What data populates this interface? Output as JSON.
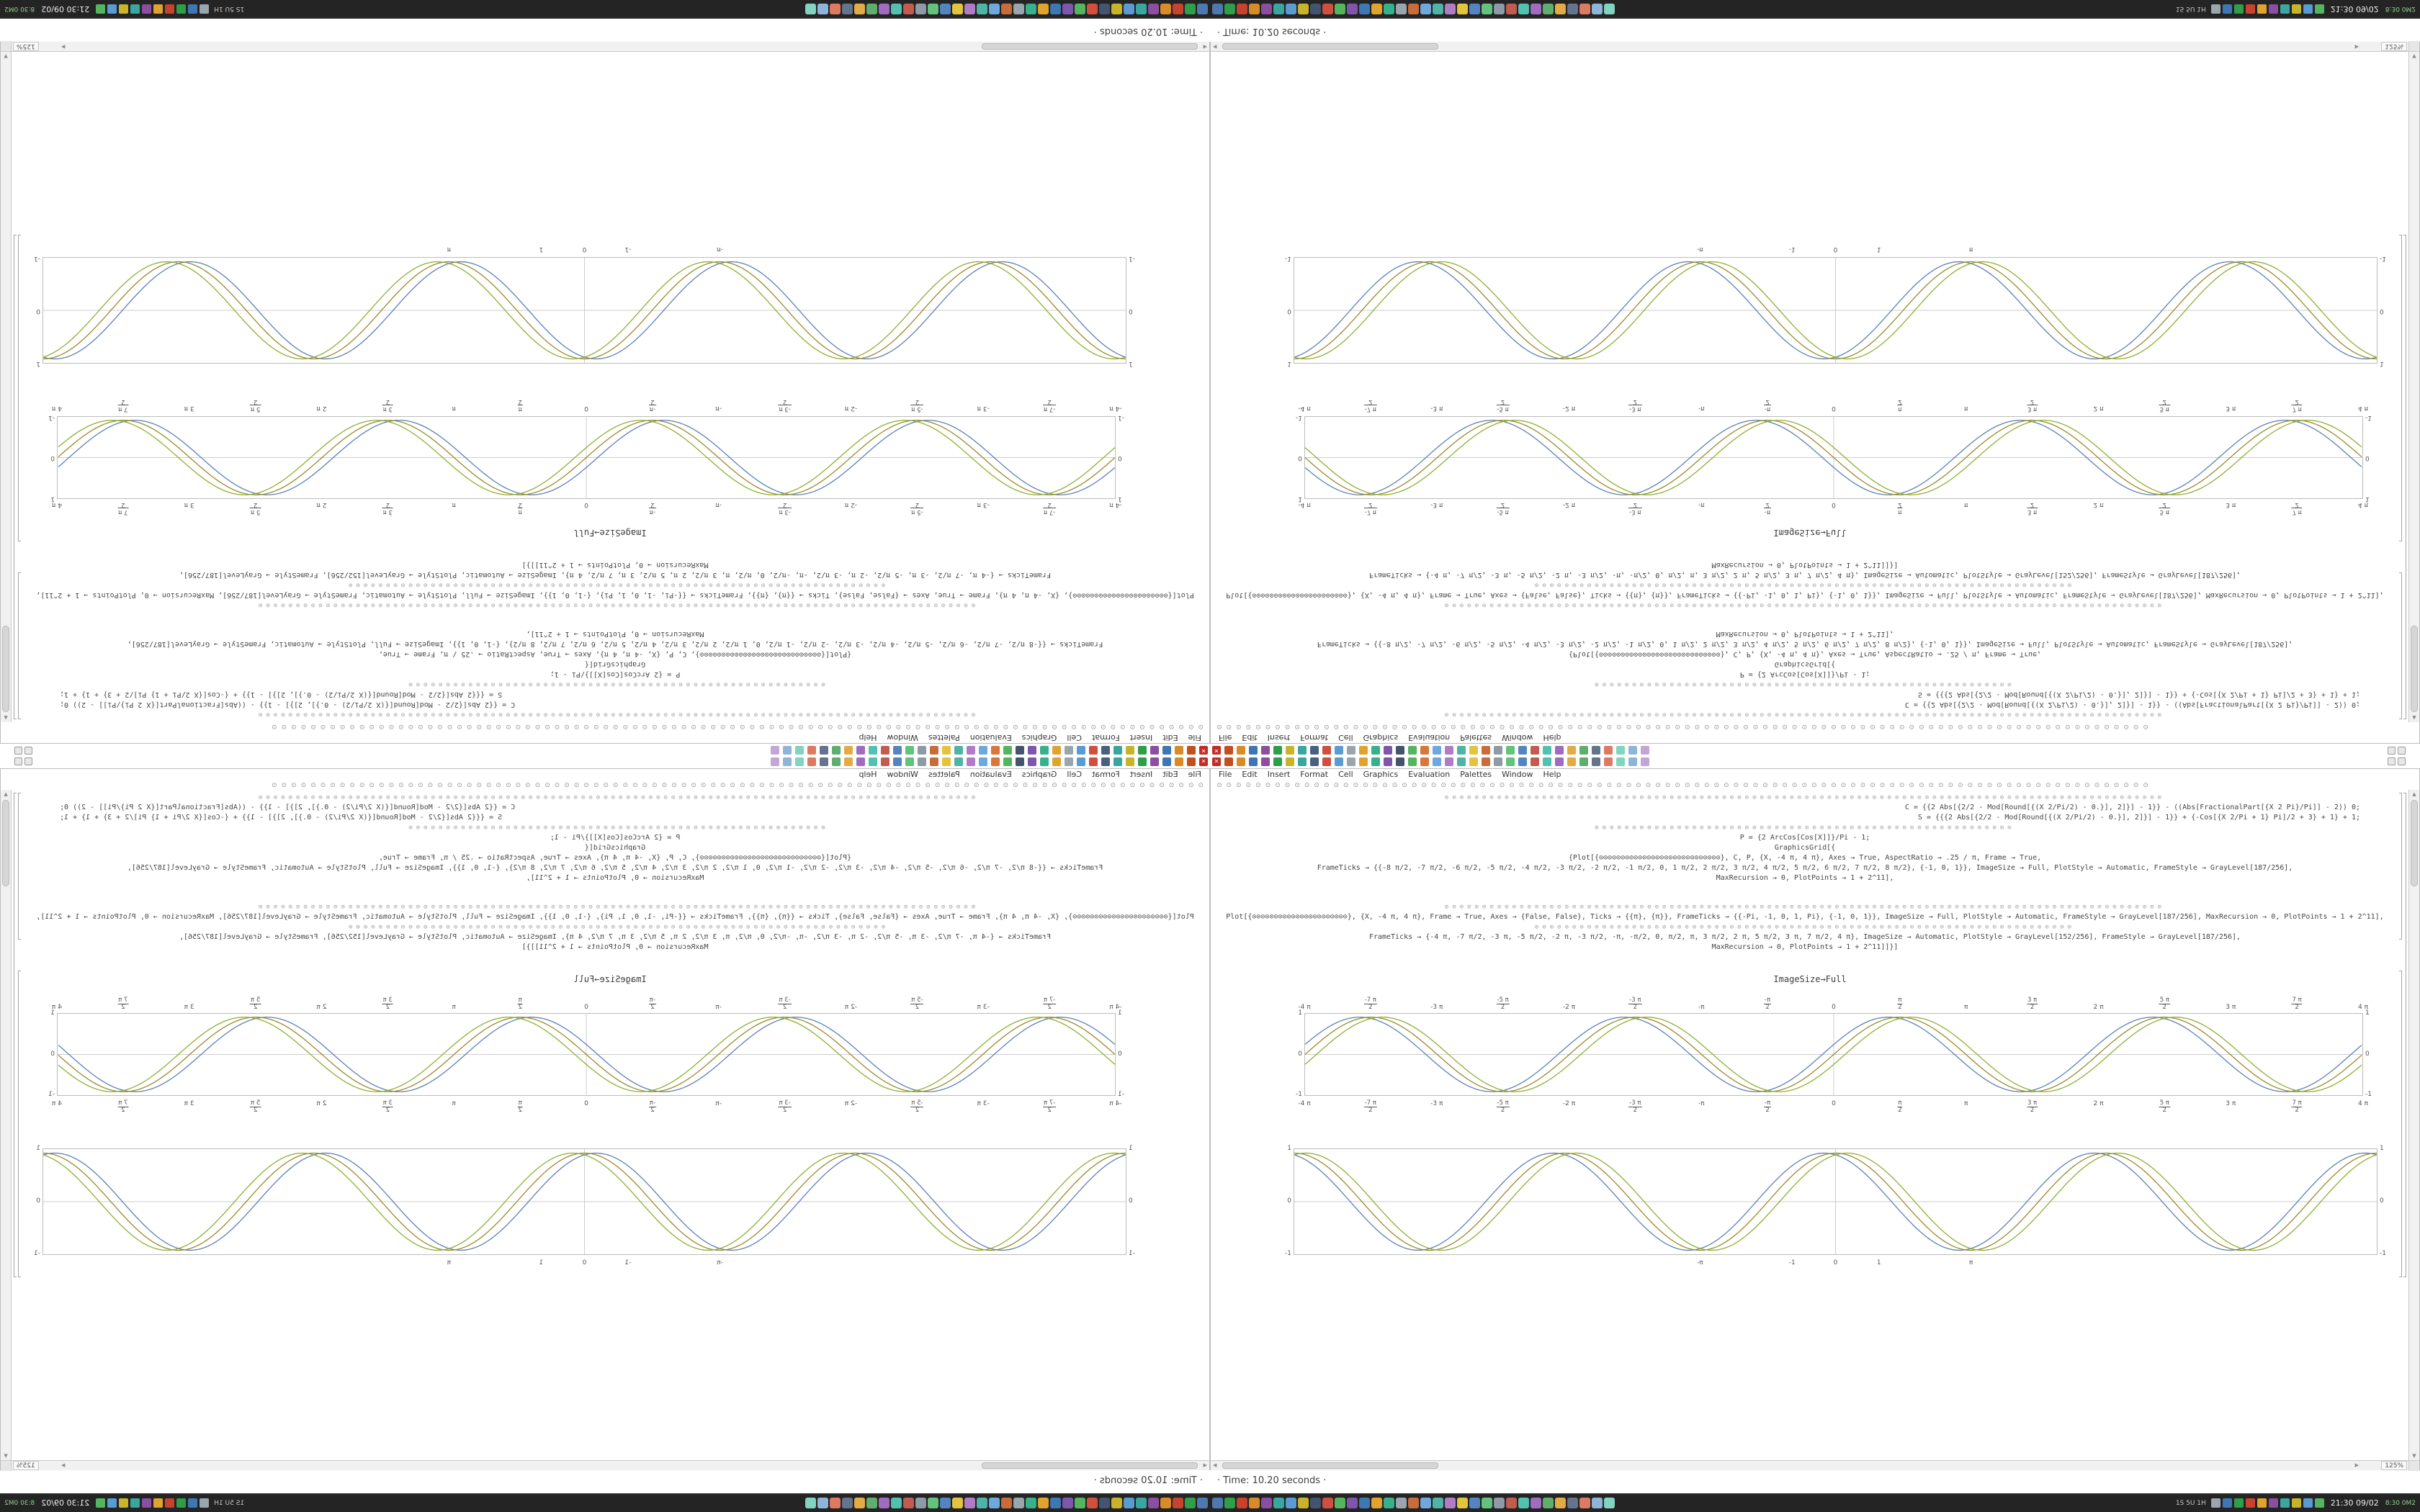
{
  "window": {
    "menu_items": [
      "File",
      "Edit",
      "Insert",
      "Format",
      "Cell",
      "Graphics",
      "Evaluation",
      "Palettes",
      "Window",
      "Help"
    ],
    "zoom": "125%"
  },
  "icons": {
    "scroll_up": "▲",
    "scroll_down": "▼",
    "scroll_left": "◀",
    "scroll_right": "▶"
  },
  "top_panel": {
    "icons": [
      {
        "c": "#bf2d24",
        "g": "✕"
      },
      {
        "c": "#c24f20"
      },
      {
        "c": "#d98b27"
      },
      {
        "c": "#3f76b4"
      },
      {
        "c": "#8c4ea0"
      },
      {
        "c": "#2e9e49"
      },
      {
        "c": "#c8b42a"
      },
      {
        "c": "#3aa6a0"
      },
      {
        "c": "#4a5f82"
      },
      {
        "c": "#d04f3e"
      },
      {
        "c": "#5a9bd4"
      },
      {
        "c": "#9aa5ad"
      },
      {
        "c": "#e0a32e"
      },
      {
        "c": "#37b08c"
      },
      {
        "c": "#7e57ad"
      },
      {
        "c": "#44546e"
      },
      {
        "c": "#55b45e"
      },
      {
        "c": "#d9763a"
      },
      {
        "c": "#6fa8dc"
      },
      {
        "c": "#b07cc6"
      },
      {
        "c": "#4fb3a5"
      },
      {
        "c": "#e3c43f"
      },
      {
        "c": "#c96c3c"
      },
      {
        "c": "#8e9aa6"
      },
      {
        "c": "#63c27b"
      },
      {
        "c": "#5585c0"
      },
      {
        "c": "#c25b50"
      },
      {
        "c": "#52c2b0"
      },
      {
        "c": "#a06cc0"
      },
      {
        "c": "#e2ab45"
      },
      {
        "c": "#5fae6e"
      },
      {
        "c": "#64748c"
      },
      {
        "c": "#df7a62"
      },
      {
        "c": "#81d4c0"
      },
      {
        "c": "#8fb4d9"
      },
      {
        "c": "#c4a6d6"
      }
    ]
  },
  "toolbar": {
    "glyph": "⊙",
    "count": 96
  },
  "notebook": {
    "caption": "ImageSize→Full",
    "code_lines": [
      {
        "t": "sym",
        "n": 96
      },
      {
        "t": "txt",
        "align": "right",
        "text": "C = {{2 Abs[{2/2 - Mod[Round[{(X 2/Pi/2) - 0.}], 2]}] - 1}} - ((Abs[FractionalPart[{X 2 Pi}/Pi]] - 2)) 0;"
      },
      {
        "t": "txt",
        "align": "right",
        "text": "S = {{{2 Abs[{2/2 - Mod[Round[{(X 2/Pi/2) - 0.}], 2]}] - 1}} + {-Cos[{X 2/Pi + 1} Pi]/2 + 3} + 1} + 1;"
      },
      {
        "t": "sym",
        "n": 56
      },
      {
        "t": "txt",
        "align": "center",
        "text": "P = {2 ArcCos[Cos[X]]}/Pi - 1;"
      },
      {
        "t": "txt",
        "align": "center",
        "text": "GraphicsGrid[{"
      },
      {
        "t": "txt",
        "align": "center",
        "text": "{Plot[{⊙⊙⊙⊙⊙⊙⊙⊙⊙⊙⊙⊙⊙⊙⊙⊙⊙⊙⊙⊙⊙⊙⊙⊙⊙⊙⊙⊙}, C, P, {X, -4 π, 4 π}, Axes → True, AspectRatio → .25 / π, Frame → True,"
      },
      {
        "t": "txt",
        "align": "center",
        "text": "FrameTicks → {{-8 π/2, -7 π/2, -6 π/2, -5 π/2, -4 π/2, -3 π/2, -2 π/2, -1 π/2, 0, 1 π/2, 2 π/2, 3 π/2, 4 π/2, 5 π/2, 6 π/2, 7 π/2, 8 π/2}, {-1, 0, 1}}, ImageSize → Full, PlotStyle → Automatic, FrameStyle → GrayLevel[187/256],"
      },
      {
        "t": "txt",
        "align": "center",
        "text": "MaxRecursion → 0, PlotPoints → 1 + 2^11],"
      },
      {
        "t": "gap"
      },
      {
        "t": "sym",
        "n": 96
      },
      {
        "t": "txt",
        "align": "center",
        "text": "Plot[{⊙⊙⊙⊙⊙⊙⊙⊙⊙⊙⊙⊙⊙⊙⊙⊙⊙⊙⊙⊙⊙⊙}, {X, -4 π, 4 π}, Frame → True, Axes → {False, False}, Ticks → {{π}, {π}}, FrameTicks → {{-Pi, -1, 0, 1, Pi}, {-1, 0, 1}}, ImageSize → Full, PlotStyle → Automatic, FrameStyle → GrayLevel[187/256], MaxRecursion → 0, PlotPoints → 1 + 2^11],"
      },
      {
        "t": "sym",
        "n": 72
      },
      {
        "t": "txt",
        "align": "center",
        "text": "FrameTicks → {-4 π, -7 π/2, -3 π, -5 π/2, -2 π, -3 π/2, -π, -π/2, 0, π/2, π, 3 π/2, 2 π, 5 π/2, 3 π, 7 π/2, 4 π}, ImageSize → Automatic, PlotStyle → GrayLevel[152/256], FrameStyle → GrayLevel[187/256],"
      },
      {
        "t": "txt",
        "align": "center",
        "text": "MaxRecursion → 0, PlotPoints → 1 + 2^11]]}]"
      }
    ]
  },
  "chart_data": {
    "plots": [
      {
        "type": "line",
        "title": "",
        "xlabel": "",
        "ylabel": "",
        "xmin": -12.566,
        "xmax": 12.566,
        "ylim": [
          -1,
          1
        ],
        "grid": false,
        "series": [
          {
            "name": "wave-blue",
            "fn": "sin",
            "phase": 0.27,
            "amp": 0.95,
            "color": "#5e81b5"
          },
          {
            "name": "wave-olive",
            "fn": "sin",
            "phase": 0.0,
            "amp": 0.95,
            "color": "#9a8a2d"
          },
          {
            "name": "wave-green",
            "fn": "sin",
            "phase": -0.27,
            "amp": 0.95,
            "color": "#8fb032"
          }
        ],
        "ticks_top": "same",
        "ticks_bottom": [
          {
            "p": 0,
            "w": "-4 π"
          },
          {
            "p": 6.25,
            "n": "-7 π",
            "d": "2"
          },
          {
            "p": 12.5,
            "w": "-3 π"
          },
          {
            "p": 18.75,
            "n": "-5 π",
            "d": "2"
          },
          {
            "p": 25,
            "w": "-2 π"
          },
          {
            "p": 31.25,
            "n": "-3 π",
            "d": "2"
          },
          {
            "p": 37.5,
            "w": "-π"
          },
          {
            "p": 43.75,
            "n": "-π",
            "d": "2"
          },
          {
            "p": 50,
            "w": "0"
          },
          {
            "p": 56.25,
            "n": "π",
            "d": "2"
          },
          {
            "p": 62.5,
            "w": "π"
          },
          {
            "p": 68.75,
            "n": "3 π",
            "d": "2"
          },
          {
            "p": 75,
            "w": "2 π"
          },
          {
            "p": 81.25,
            "n": "5 π",
            "d": "2"
          },
          {
            "p": 87.5,
            "w": "3 π"
          },
          {
            "p": 93.75,
            "n": "7 π",
            "d": "2"
          },
          {
            "p": 100,
            "w": "4 π"
          }
        ],
        "yticks": [
          "1",
          "0",
          "-1"
        ]
      },
      {
        "type": "line",
        "title": "",
        "xlabel": "",
        "ylabel": "",
        "xmin": -12.566,
        "xmax": 12.566,
        "ylim": [
          -1,
          1
        ],
        "grid": false,
        "series": [
          {
            "name": "wave-blue",
            "fn": "cos",
            "phase": 0.27,
            "amp": 0.95,
            "color": "#5e81b5"
          },
          {
            "name": "wave-olive",
            "fn": "cos",
            "phase": 0.0,
            "amp": 0.95,
            "color": "#9a8a2d"
          },
          {
            "name": "wave-green",
            "fn": "cos",
            "phase": -0.27,
            "amp": 0.95,
            "color": "#8fb032"
          }
        ],
        "ticks_bottom": [
          {
            "p": 37.5,
            "w": "-π"
          },
          {
            "p": 46,
            "w": "-1"
          },
          {
            "p": 50,
            "w": "0"
          },
          {
            "p": 54,
            "w": "1"
          },
          {
            "p": 62.5,
            "w": "π"
          }
        ],
        "yticks": [
          "1",
          "0",
          "-1"
        ]
      }
    ]
  },
  "status": {
    "text": "· Time: 10.20 seconds ·"
  },
  "taskbar": {
    "app_icons": [
      "#4d79b0",
      "#2e9e49",
      "#c8432e",
      "#d98b27",
      "#8c4ea0",
      "#3aa6a0",
      "#5a9bd4",
      "#c8b42a",
      "#44546e",
      "#d04f3e",
      "#55b45e",
      "#7e57ad",
      "#3f76b4",
      "#e0a32e",
      "#37b08c",
      "#9aa5ad",
      "#c96c3c",
      "#6fa8dc",
      "#4fb3a5",
      "#b07cc6",
      "#e3c43f",
      "#5585c0",
      "#63c27b",
      "#8e9aa6",
      "#c25b50",
      "#52c2b0",
      "#a06cc0",
      "#5fae6e",
      "#e2ab45",
      "#64748c",
      "#df7a62",
      "#8fb4d9",
      "#81d4c0"
    ],
    "tray_icons": [
      "#9aa5ad",
      "#3f76b4",
      "#2e9e49",
      "#c8432e",
      "#e0a32e",
      "#8c4ea0",
      "#3aa6a0",
      "#c8b42a",
      "#5a9bd4",
      "#55b45e"
    ],
    "tray_text": "1S 5U 1H",
    "clock": "21:30  09/02",
    "monitor": "8:30 0M2"
  }
}
